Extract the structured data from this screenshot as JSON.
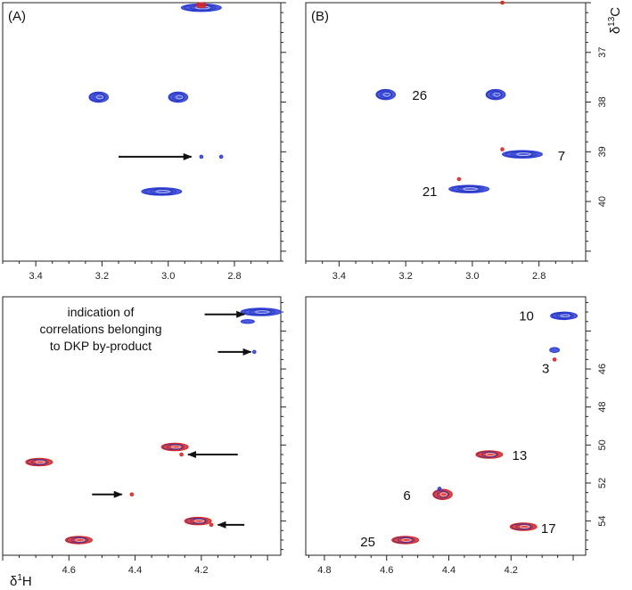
{
  "chart_data": [
    {
      "type": "scatter",
      "id": "A-top",
      "panel_label": "(A)",
      "x_ticks": [
        3.4,
        3.2,
        3.0,
        2.8
      ],
      "xlim": [
        3.5,
        2.66
      ],
      "ylim": [
        36.0,
        41.2
      ],
      "peaks": [
        {
          "x": 2.9,
          "y": 36.1,
          "color": "blue",
          "size": "large",
          "shape": "elongated"
        },
        {
          "x": 2.9,
          "y": 36.05,
          "color": "red",
          "size": "small",
          "shape": "round"
        },
        {
          "x": 3.21,
          "y": 37.9,
          "color": "blue",
          "size": "medium",
          "shape": "round"
        },
        {
          "x": 2.97,
          "y": 37.9,
          "color": "blue",
          "size": "medium",
          "shape": "round"
        },
        {
          "x": 2.9,
          "y": 39.1,
          "color": "blue",
          "size": "tiny",
          "shape": "round"
        },
        {
          "x": 2.84,
          "y": 39.1,
          "color": "blue",
          "size": "tiny",
          "shape": "round"
        },
        {
          "x": 3.02,
          "y": 39.8,
          "color": "blue",
          "size": "large",
          "shape": "elongated"
        }
      ],
      "arrows": [
        {
          "x1": 3.15,
          "x2": 2.93,
          "y": 39.1
        }
      ]
    },
    {
      "type": "scatter",
      "id": "B-top",
      "panel_label": "(B)",
      "x_ticks": [
        3.4,
        3.2,
        3.0,
        2.8
      ],
      "y_ticks": [
        37,
        38,
        39,
        40
      ],
      "xlim": [
        3.5,
        2.66
      ],
      "ylim": [
        36.0,
        41.2
      ],
      "ylabel": "δ13C",
      "peaks": [
        {
          "x": 3.26,
          "y": 37.85,
          "color": "blue",
          "size": "medium",
          "shape": "round",
          "label": "26"
        },
        {
          "x": 2.93,
          "y": 37.85,
          "color": "blue",
          "size": "medium",
          "shape": "round"
        },
        {
          "x": 2.85,
          "y": 39.05,
          "color": "blue",
          "size": "large",
          "shape": "elongated",
          "label": "7"
        },
        {
          "x": 2.91,
          "y": 38.95,
          "color": "red",
          "size": "tiny",
          "shape": "round"
        },
        {
          "x": 3.01,
          "y": 39.75,
          "color": "blue",
          "size": "large",
          "shape": "elongated",
          "label": "21"
        },
        {
          "x": 3.04,
          "y": 39.55,
          "color": "red",
          "size": "tiny",
          "shape": "round"
        },
        {
          "x": 2.91,
          "y": 36.0,
          "color": "red",
          "size": "tiny",
          "shape": "round"
        }
      ]
    },
    {
      "type": "scatter",
      "id": "A-bottom",
      "x_ticks": [
        4.6,
        4.4,
        4.2
      ],
      "xlim": [
        4.8,
        3.96
      ],
      "ylim": [
        42.2,
        55.8
      ],
      "xlabel": "δ1H",
      "annotation": "indication of correlations belonging to DKP by-product",
      "peaks": [
        {
          "x": 4.02,
          "y": 43.0,
          "color": "blue",
          "size": "large",
          "shape": "elongated"
        },
        {
          "x": 4.06,
          "y": 43.5,
          "color": "blue",
          "size": "small",
          "shape": "elongated"
        },
        {
          "x": 4.04,
          "y": 45.1,
          "color": "blue",
          "size": "tiny",
          "shape": "round"
        },
        {
          "x": 4.69,
          "y": 50.9,
          "color": "red",
          "size": "medium",
          "shape": "elongated"
        },
        {
          "x": 4.28,
          "y": 50.1,
          "color": "red",
          "size": "medium",
          "shape": "elongated"
        },
        {
          "x": 4.26,
          "y": 50.5,
          "color": "red",
          "size": "tiny",
          "shape": "round"
        },
        {
          "x": 4.41,
          "y": 52.6,
          "color": "red",
          "size": "tiny",
          "shape": "round"
        },
        {
          "x": 4.21,
          "y": 54.0,
          "color": "red",
          "size": "medium",
          "shape": "elongated"
        },
        {
          "x": 4.17,
          "y": 54.2,
          "color": "red",
          "size": "tiny",
          "shape": "round"
        },
        {
          "x": 4.57,
          "y": 55.0,
          "color": "red",
          "size": "medium",
          "shape": "elongated"
        }
      ],
      "arrows": [
        {
          "x1": 4.19,
          "x2": 4.07,
          "y": 43.5
        },
        {
          "x1": 4.15,
          "x2": 4.05,
          "y": 45.1
        },
        {
          "x1": 4.09,
          "x2": 4.24,
          "y": 50.5
        },
        {
          "x1": 4.53,
          "x2": 4.44,
          "y": 52.6
        },
        {
          "x1": 4.07,
          "x2": 4.15,
          "y": 54.2
        }
      ]
    },
    {
      "type": "scatter",
      "id": "B-bottom",
      "x_ticks": [
        4.8,
        4.6,
        4.4,
        4.2
      ],
      "y_ticks": [
        46,
        48,
        50,
        52,
        54
      ],
      "xlim": [
        4.86,
        3.96
      ],
      "ylim": [
        42.2,
        55.8
      ],
      "peaks": [
        {
          "x": 4.03,
          "y": 43.2,
          "color": "blue",
          "size": "medium",
          "shape": "elongated",
          "label": "10"
        },
        {
          "x": 4.06,
          "y": 45.0,
          "color": "blue",
          "size": "small",
          "shape": "round",
          "label": "3"
        },
        {
          "x": 4.06,
          "y": 45.5,
          "color": "red",
          "size": "tiny",
          "shape": "round"
        },
        {
          "x": 4.27,
          "y": 50.5,
          "color": "red",
          "size": "medium",
          "shape": "elongated",
          "label": "13"
        },
        {
          "x": 4.42,
          "y": 52.6,
          "color": "red",
          "size": "medium",
          "shape": "round",
          "label": "6"
        },
        {
          "x": 4.43,
          "y": 52.3,
          "color": "blue",
          "size": "tiny",
          "shape": "round"
        },
        {
          "x": 4.16,
          "y": 54.3,
          "color": "red",
          "size": "medium",
          "shape": "elongated",
          "label": "17"
        },
        {
          "x": 4.54,
          "y": 55.0,
          "color": "red",
          "size": "medium",
          "shape": "elongated",
          "label": "25"
        }
      ]
    }
  ],
  "colors": {
    "blue": "#2b3cdc",
    "red": "#e0231f",
    "frame": "#222222"
  }
}
